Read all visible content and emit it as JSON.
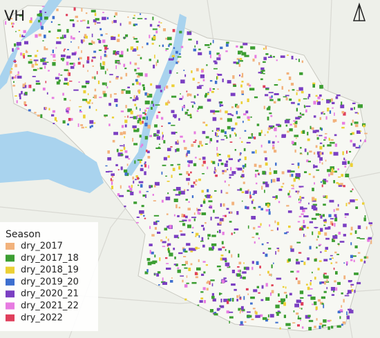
{
  "title": "VH",
  "legend": {
    "title": "Season",
    "items": [
      {
        "label": "dry_2017",
        "color": "#f2b27c"
      },
      {
        "label": "dry_2017_18",
        "color": "#3c9e32"
      },
      {
        "label": "dry_2018_19",
        "color": "#ecd034"
      },
      {
        "label": "dry_2019_20",
        "color": "#3d6fcf"
      },
      {
        "label": "dry_2020_21",
        "color": "#7b3fc2"
      },
      {
        "label": "dry_2021_22",
        "color": "#e77be1"
      },
      {
        "label": "dry_2022",
        "color": "#df3f5b"
      }
    ]
  }
}
